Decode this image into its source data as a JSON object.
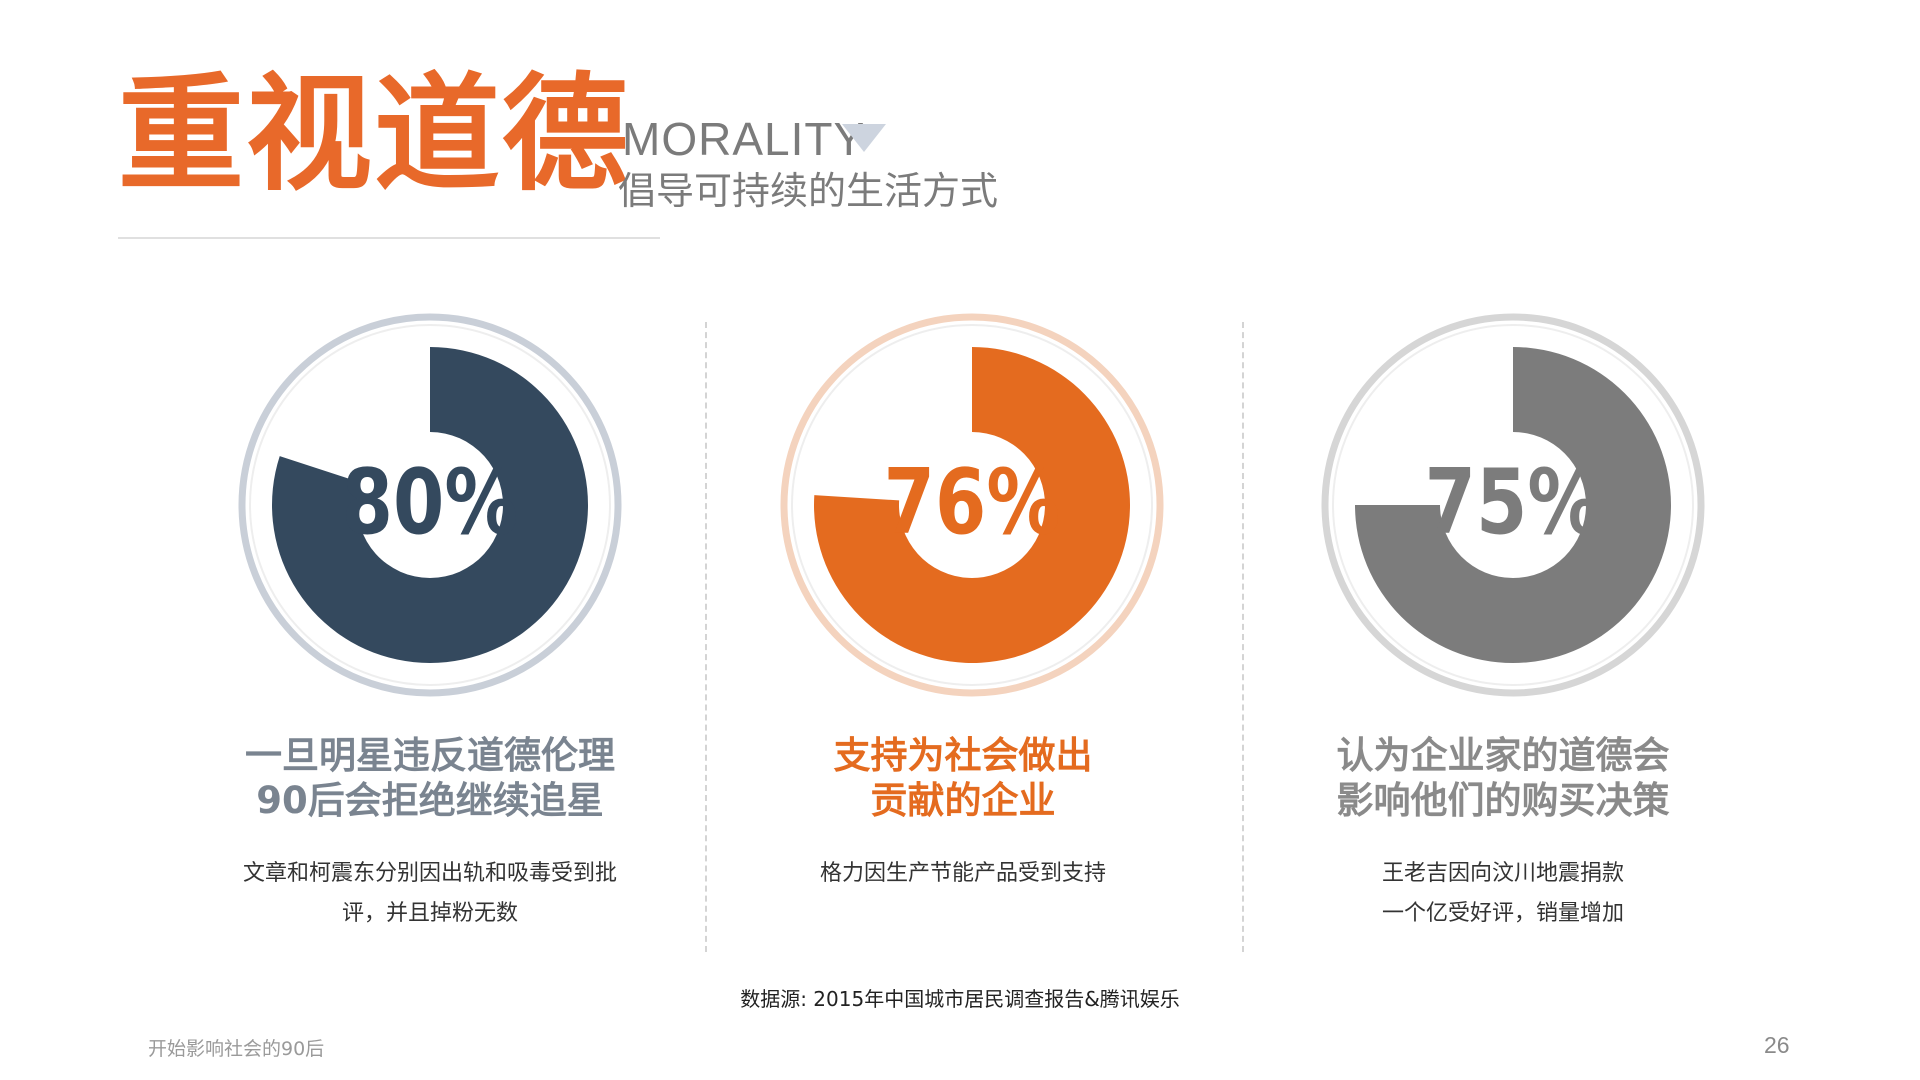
{
  "title": {
    "main": "重视道德",
    "en": "MORALITY",
    "subtitle": "倡导可持续的生活方式",
    "main_color": "#e8692a"
  },
  "chart_data": [
    {
      "type": "pie",
      "value": 80,
      "label": "80%",
      "color": "#34495e",
      "ring_color": "#c9cfd8",
      "headline": [
        "一旦明星违反道德伦理",
        "90后会拒绝继续追星"
      ],
      "headline_color": "#7a8490",
      "description": [
        "文章和柯震东分别因出轨和吸毒受到批",
        "评，并且掉粉无数"
      ]
    },
    {
      "type": "pie",
      "value": 76,
      "label": "76%",
      "color": "#e46b1f",
      "ring_color": "#f4d3be",
      "headline": [
        "支持为社会做出",
        "贡献的企业"
      ],
      "headline_color": "#e46b1f",
      "description": [
        "格力因生产节能产品受到支持"
      ]
    },
    {
      "type": "pie",
      "value": 75,
      "label": "75%",
      "color": "#7c7c7c",
      "ring_color": "#d6d6d6",
      "headline": [
        "认为企业家的道德会",
        "影响他们的购买决策"
      ],
      "headline_color": "#8a8a8a",
      "description": [
        "王老吉因向汶川地震捐款",
        "一个亿受好评，销量增加"
      ]
    }
  ],
  "source": "数据源: 2015年中国城市居民调查报告&腾讯娱乐",
  "footer": {
    "left": "开始影响社会的90后",
    "page_number": "26"
  }
}
